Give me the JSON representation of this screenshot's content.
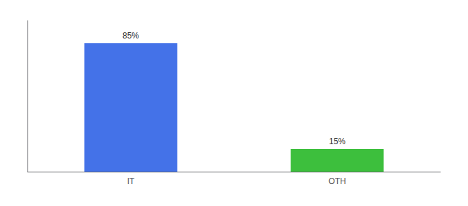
{
  "chart_data": {
    "type": "bar",
    "categories": [
      "IT",
      "OTH"
    ],
    "values": [
      85,
      15
    ],
    "value_labels": [
      "85%",
      "15%"
    ],
    "colors": [
      "#4472e8",
      "#3dbf3d"
    ],
    "ylim": [
      0,
      100
    ],
    "grid": false,
    "tick_labels": "x",
    "data_labels": true
  }
}
